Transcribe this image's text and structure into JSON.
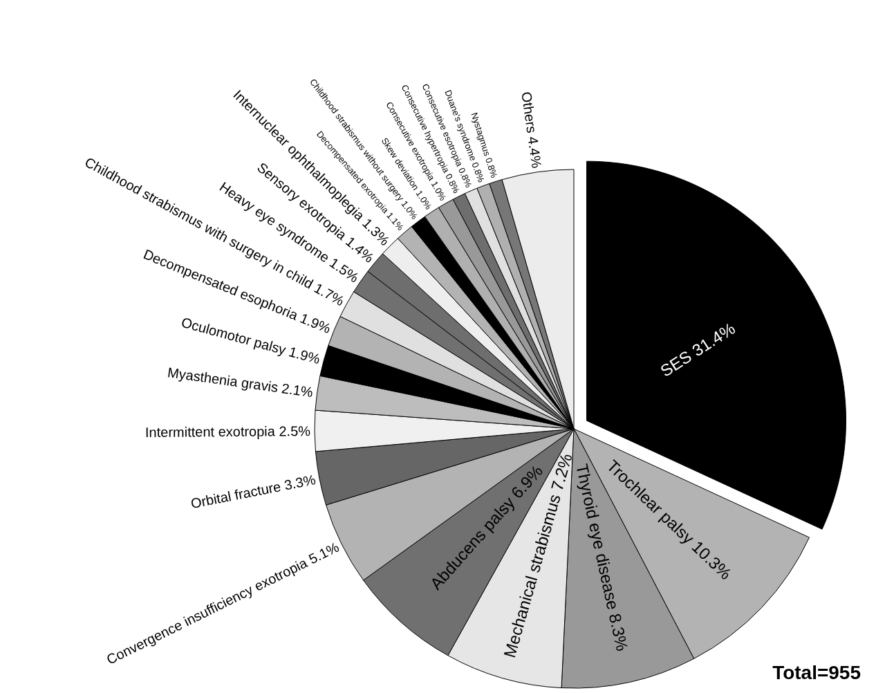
{
  "chart_data": {
    "type": "pie",
    "categories": [
      "SES",
      "Trochlear palsy",
      "Thyroid eye disease",
      "Mechanical strabismus",
      "Abducens palsy",
      "Convergence insufficiency exotropia",
      "Orbital fracture",
      "Intermittent exotropia",
      "Myasthenia gravis",
      "Oculomotor palsy",
      "Decompensated esophoria",
      "Childhood strabismus with surgery in child",
      "Heavy eye syndrome",
      "Sensory exotropia",
      "Internuclear ophthalmoplegia",
      "Decompensated exotropia",
      "Childhood strabismus without surgery",
      "Skew deviation",
      "Consecutive exotropia",
      "Consecutive hypertropia",
      "Consecutive esotropia",
      "Duane's syndrome",
      "Nystagmus",
      "Others"
    ],
    "values": [
      31.4,
      10.3,
      8.3,
      7.2,
      6.9,
      5.1,
      3.3,
      2.5,
      2.1,
      1.9,
      1.9,
      1.7,
      1.5,
      1.4,
      1.3,
      1.1,
      1.0,
      1.0,
      1.0,
      0.8,
      0.8,
      0.8,
      0.8,
      4.4
    ],
    "colors": [
      "#000000",
      "#b3b3b3",
      "#999999",
      "#e6e6e6",
      "#707070",
      "#b3b3b3",
      "#666666",
      "#f0f0f0",
      "#bdbdbd",
      "#000000",
      "#b3b3b3",
      "#e0e0e0",
      "#707070",
      "#6e6e6e",
      "#eeeeee",
      "#b3b3b3",
      "#000000",
      "#b0b0b0",
      "#999999",
      "#6e6e6e",
      "#e0e0e0",
      "#b0b0b0",
      "#777777",
      "#ececec"
    ],
    "value_labels": [
      "31.4%",
      "10.3%",
      "8.3%",
      "7.2%",
      "6.9%",
      "5.1%",
      "3.3%",
      "2.5%",
      "2.1%",
      "1.9%",
      "1.9%",
      "1.7%",
      "1.5%",
      "1.4%",
      "1.3%",
      "1.1%",
      "1.0%",
      "1.0%",
      "1.0%",
      "0.8%",
      "0.8%",
      "0.8%",
      "0.8%",
      "4.4%"
    ],
    "annotations": [
      "Total=955"
    ]
  }
}
